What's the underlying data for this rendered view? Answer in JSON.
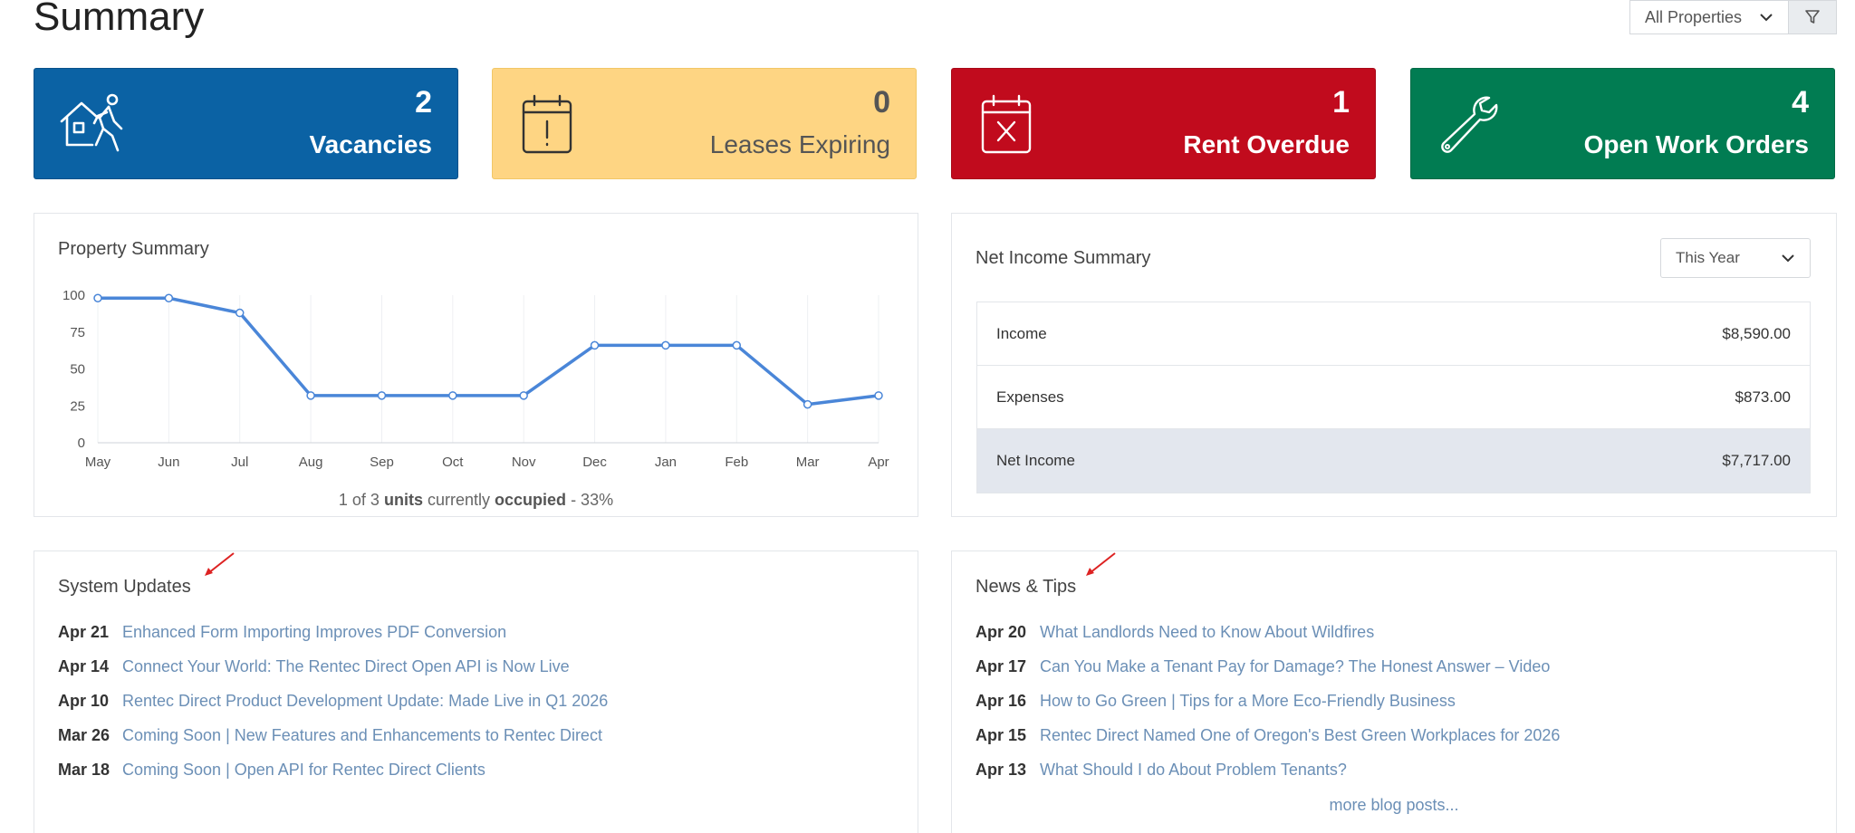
{
  "header": {
    "title": "Summary",
    "property_filter": "All Properties"
  },
  "stats": [
    {
      "count": "2",
      "label": "Vacancies",
      "icon": "house-walking-person-icon"
    },
    {
      "count": "0",
      "label": "Leases Expiring",
      "icon": "calendar-exclamation-icon"
    },
    {
      "count": "1",
      "label": "Rent Overdue",
      "icon": "calendar-x-icon"
    },
    {
      "count": "4",
      "label": "Open Work Orders",
      "icon": "wrench-icon"
    }
  ],
  "colors": {
    "blue": "#0b62a4",
    "yellow": "#fed583",
    "red": "#c10b1d",
    "green": "#017c52",
    "line": "#4a86d8",
    "link": "#6b8fb6"
  },
  "property_summary": {
    "title": "Property Summary",
    "caption": {
      "prefix": "1 of 3",
      "units": "units",
      "mid": "currently",
      "occupied": "occupied",
      "suffix": "- 33%"
    }
  },
  "chart_data": {
    "type": "line",
    "categories": [
      "May",
      "Jun",
      "Jul",
      "Aug",
      "Sep",
      "Oct",
      "Nov",
      "Dec",
      "Jan",
      "Feb",
      "Mar",
      "Apr"
    ],
    "values": [
      98,
      98,
      88,
      32,
      32,
      32,
      32,
      66,
      66,
      66,
      26,
      32
    ],
    "yticks": [
      "0",
      "25",
      "50",
      "75",
      "100"
    ],
    "ylim": [
      0,
      100
    ],
    "grid": "vertical",
    "markers": true
  },
  "net_income": {
    "title": "Net Income Summary",
    "period": "This Year",
    "rows": [
      {
        "label": "Income",
        "value": "$8,590.00"
      },
      {
        "label": "Expenses",
        "value": "$873.00"
      },
      {
        "label": "Net Income",
        "value": "$7,717.00"
      }
    ]
  },
  "system_updates": {
    "title": "System Updates",
    "items": [
      {
        "date": "Apr 21",
        "text": "Enhanced Form Importing Improves PDF Conversion"
      },
      {
        "date": "Apr 14",
        "text": "Connect Your World: The Rentec Direct Open API is Now Live"
      },
      {
        "date": "Apr 10",
        "text": "Rentec Direct Product Development Update: Made Live in Q1 2026"
      },
      {
        "date": "Mar 26",
        "text": "Coming Soon | New Features and Enhancements to Rentec Direct"
      },
      {
        "date": "Mar 18",
        "text": "Coming Soon | Open API for Rentec Direct Clients"
      }
    ]
  },
  "news_tips": {
    "title": "News & Tips",
    "items": [
      {
        "date": "Apr 20",
        "text": "What Landlords Need to Know About Wildfires"
      },
      {
        "date": "Apr 17",
        "text": "Can You Make a Tenant Pay for Damage? The Honest Answer – Video"
      },
      {
        "date": "Apr 16",
        "text": "How to Go Green | Tips for a More Eco-Friendly Business"
      },
      {
        "date": "Apr 15",
        "text": "Rentec Direct Named One of Oregon's Best Green Workplaces for 2026"
      },
      {
        "date": "Apr 13",
        "text": "What Should I do About Problem Tenants?"
      }
    ],
    "more": "more blog posts..."
  }
}
